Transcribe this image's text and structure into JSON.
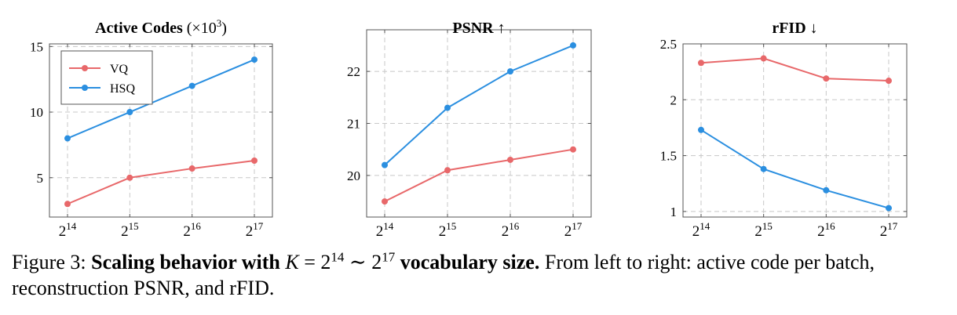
{
  "chart_data": [
    {
      "type": "line",
      "title": "Active Codes (×10³)",
      "title_parts": {
        "bold": "Active Codes",
        "rest": "(×10",
        "sup": "3",
        "close": ")"
      },
      "x": [
        16384,
        32768,
        65536,
        131072
      ],
      "x_tick_labels": [
        {
          "base": "2",
          "exp": "14"
        },
        {
          "base": "2",
          "exp": "15"
        },
        {
          "base": "2",
          "exp": "16"
        },
        {
          "base": "2",
          "exp": "17"
        }
      ],
      "y_ticks": [
        5,
        10,
        15
      ],
      "y_tick_labels": [
        "5",
        "10",
        "15"
      ],
      "ylim": [
        2,
        15.2
      ],
      "grid": true,
      "legend": "top-left",
      "series": [
        {
          "name": "VQ",
          "color": "#e8686a",
          "values": [
            3.0,
            5.0,
            5.7,
            6.3
          ]
        },
        {
          "name": "HSQ",
          "color": "#2b8fe0",
          "values": [
            8.0,
            10.0,
            12.0,
            14.0
          ]
        }
      ]
    },
    {
      "type": "line",
      "title": "PSNR ↑",
      "title_parts": {
        "bold": "PSNR",
        "rest": "↑"
      },
      "x": [
        16384,
        32768,
        65536,
        131072
      ],
      "x_tick_labels": [
        {
          "base": "2",
          "exp": "14"
        },
        {
          "base": "2",
          "exp": "15"
        },
        {
          "base": "2",
          "exp": "16"
        },
        {
          "base": "2",
          "exp": "17"
        }
      ],
      "y_ticks": [
        20,
        21,
        22
      ],
      "y_tick_labels": [
        "20",
        "21",
        "22"
      ],
      "ylim": [
        19.2,
        22.8
      ],
      "grid": true,
      "legend": "none",
      "series": [
        {
          "name": "VQ",
          "color": "#e8686a",
          "values": [
            19.5,
            20.1,
            20.3,
            20.5
          ]
        },
        {
          "name": "HSQ",
          "color": "#2b8fe0",
          "values": [
            20.2,
            21.3,
            22.0,
            22.5
          ]
        }
      ]
    },
    {
      "type": "line",
      "title": "rFID ↓",
      "title_parts": {
        "bold": "rFID",
        "rest": "↓"
      },
      "x": [
        16384,
        32768,
        65536,
        131072
      ],
      "x_tick_labels": [
        {
          "base": "2",
          "exp": "14"
        },
        {
          "base": "2",
          "exp": "15"
        },
        {
          "base": "2",
          "exp": "16"
        },
        {
          "base": "2",
          "exp": "17"
        }
      ],
      "y_ticks": [
        1,
        1.5,
        2,
        2.5
      ],
      "y_tick_labels": [
        "1",
        "1.5",
        "2",
        "2.5"
      ],
      "ylim": [
        0.95,
        2.5
      ],
      "grid": true,
      "legend": "none",
      "series": [
        {
          "name": "VQ",
          "color": "#e8686a",
          "values": [
            2.33,
            2.37,
            2.19,
            2.17
          ]
        },
        {
          "name": "HSQ",
          "color": "#2b8fe0",
          "values": [
            1.73,
            1.38,
            1.19,
            1.03
          ]
        }
      ]
    }
  ],
  "caption": {
    "label": "Figure 3:",
    "bold_lead": "Scaling behavior with",
    "math_var": "K",
    "math_eq": "= 2",
    "math_exp1": "14",
    "math_sim": "∼ 2",
    "math_exp2": "17",
    "bold_tail": "vocabulary size.",
    "rest": "From left to right: active code per batch, reconstruction PSNR, and rFID."
  }
}
